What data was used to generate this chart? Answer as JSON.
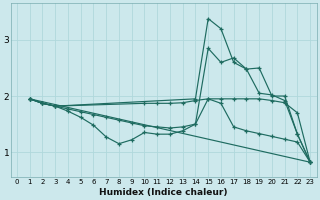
{
  "title": "",
  "xlabel": "Humidex (Indice chaleur)",
  "xlim": [
    -0.5,
    23.5
  ],
  "ylim": [
    0.55,
    3.65
  ],
  "yticks": [
    1,
    2,
    3
  ],
  "xticks": [
    0,
    1,
    2,
    3,
    4,
    5,
    6,
    7,
    8,
    9,
    10,
    11,
    12,
    13,
    14,
    15,
    16,
    17,
    18,
    19,
    20,
    21,
    22,
    23
  ],
  "bg_color": "#cce8ec",
  "grid_color": "#b0d8dc",
  "line_color": "#1e6b60",
  "figsize": [
    3.2,
    2.0
  ],
  "dpi": 100,
  "lines": [
    {
      "x": [
        1,
        2,
        3,
        4,
        5,
        6,
        7,
        8,
        9,
        10,
        11,
        12,
        13,
        14,
        15,
        16,
        17,
        18,
        19,
        20,
        21,
        22,
        23
      ],
      "y": [
        1.95,
        1.87,
        1.82,
        1.73,
        1.62,
        1.48,
        1.27,
        1.15,
        1.22,
        1.35,
        1.32,
        1.32,
        1.38,
        1.5,
        2.85,
        2.6,
        2.68,
        2.48,
        2.5,
        2.0,
        2.0,
        1.32,
        0.82
      ]
    },
    {
      "x": [
        1,
        2,
        3,
        14,
        15,
        16,
        17,
        18,
        19,
        20,
        21,
        22,
        23
      ],
      "y": [
        1.95,
        1.87,
        1.82,
        1.95,
        3.38,
        3.2,
        2.6,
        2.48,
        2.05,
        2.02,
        1.92,
        1.32,
        0.82
      ]
    },
    {
      "x": [
        1,
        23
      ],
      "y": [
        1.95,
        0.82
      ]
    },
    {
      "x": [
        1,
        2,
        3,
        10,
        11,
        12,
        13,
        14,
        15,
        16,
        17,
        18,
        19,
        20,
        21,
        22,
        23
      ],
      "y": [
        1.95,
        1.87,
        1.82,
        1.87,
        1.87,
        1.87,
        1.88,
        1.92,
        1.95,
        1.95,
        1.95,
        1.95,
        1.95,
        1.92,
        1.88,
        1.7,
        0.82
      ]
    },
    {
      "x": [
        1,
        2,
        3,
        4,
        5,
        6,
        7,
        8,
        9,
        10,
        11,
        12,
        13,
        14,
        15,
        16,
        17,
        18,
        19,
        20,
        21,
        22,
        23
      ],
      "y": [
        1.95,
        1.87,
        1.82,
        1.77,
        1.72,
        1.67,
        1.62,
        1.57,
        1.52,
        1.47,
        1.45,
        1.43,
        1.45,
        1.5,
        1.95,
        1.87,
        1.45,
        1.38,
        1.33,
        1.28,
        1.23,
        1.18,
        0.82
      ]
    }
  ]
}
